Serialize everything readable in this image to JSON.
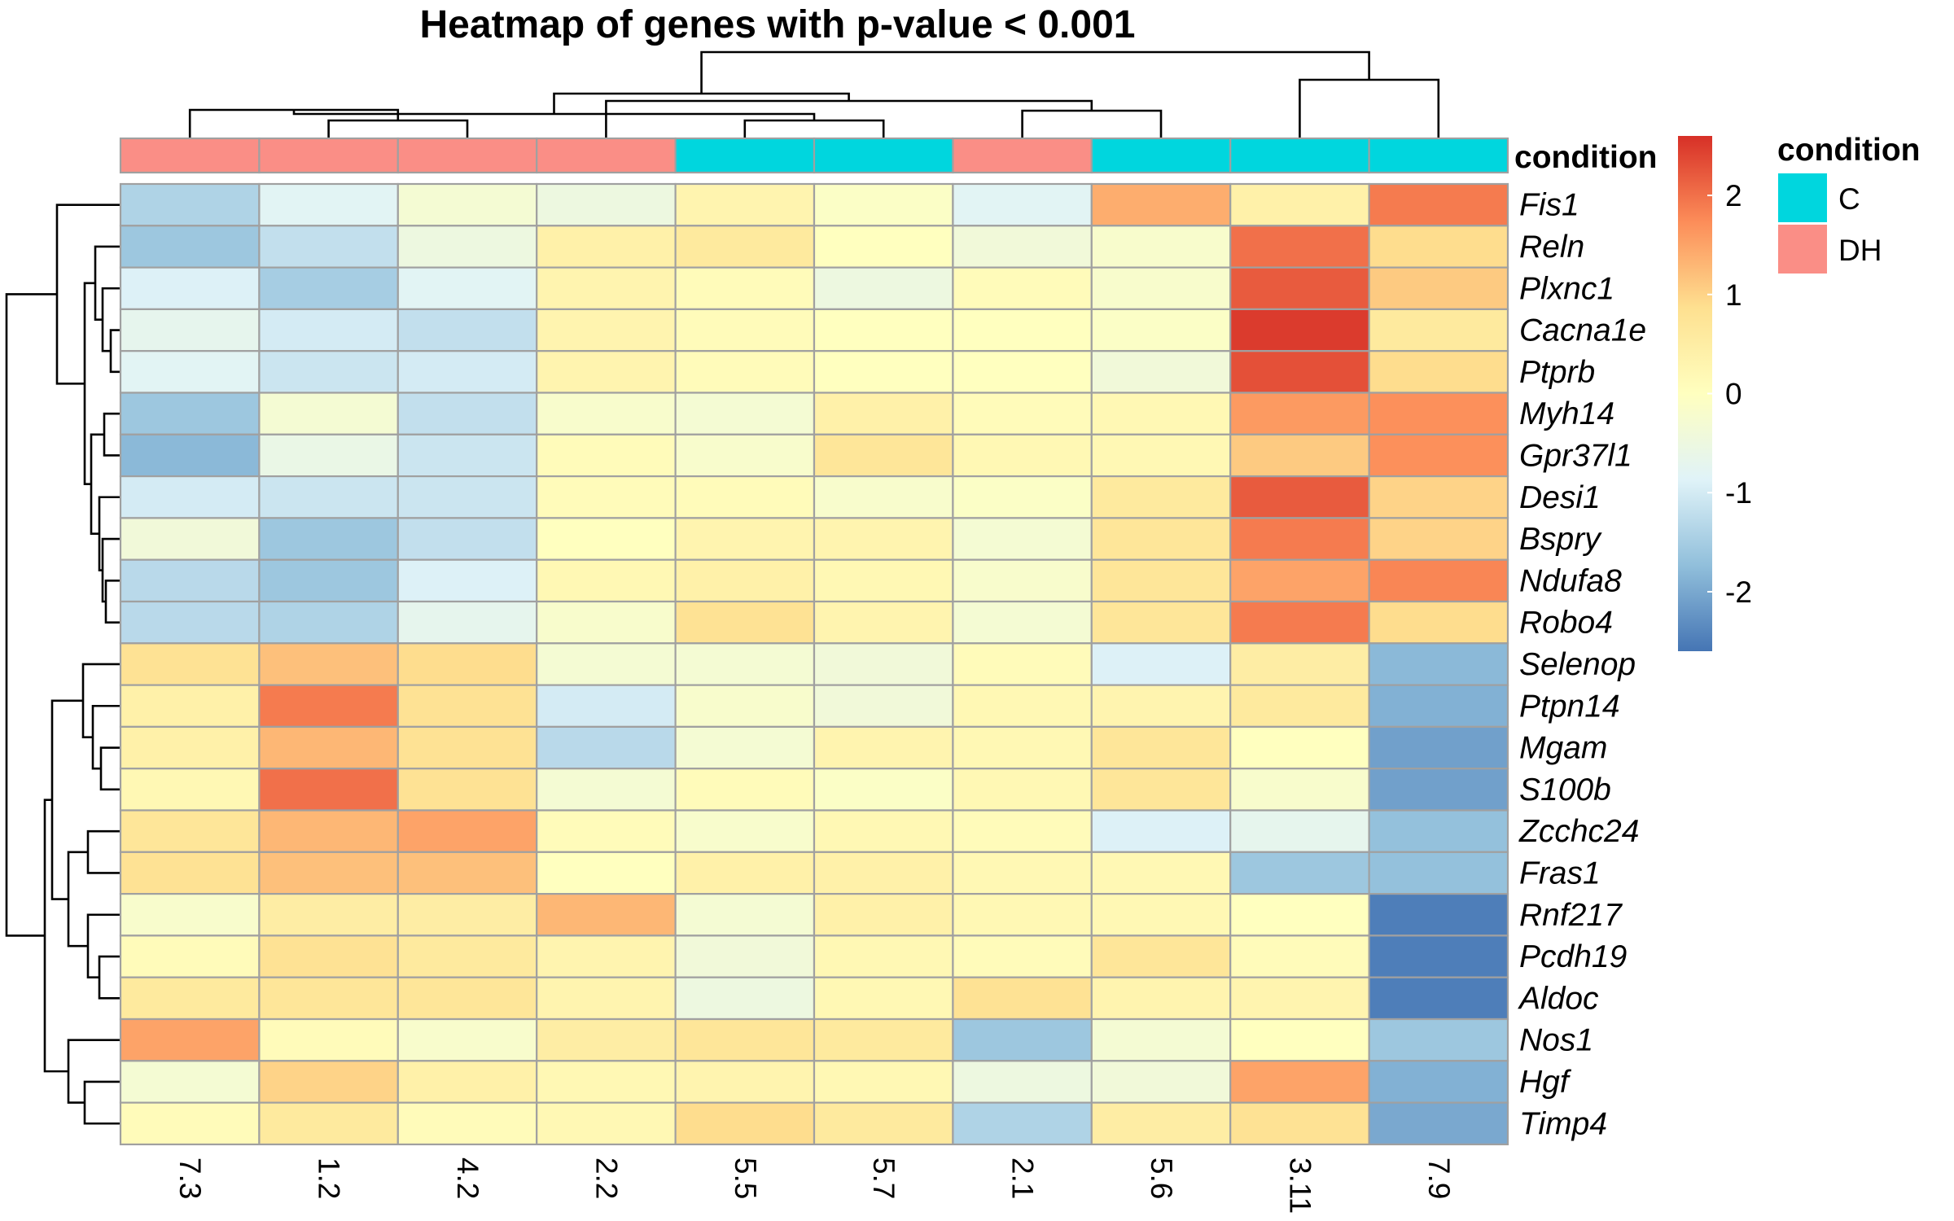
{
  "chart_data": {
    "type": "heatmap",
    "title": "Heatmap of genes with p-value < 0.001",
    "columns": [
      "7.3",
      "1.2",
      "4.2",
      "2.2",
      "5.5",
      "5.7",
      "2.1",
      "5.6",
      "3.11",
      "7.9"
    ],
    "column_condition": [
      "DH",
      "DH",
      "DH",
      "DH",
      "C",
      "C",
      "DH",
      "C",
      "C",
      "C"
    ],
    "rows": [
      "Fis1",
      "Reln",
      "Plxnc1",
      "Cacna1e",
      "Ptprb",
      "Myh14",
      "Gpr37l1",
      "Desi1",
      "Bspry",
      "Ndufa8",
      "Robo4",
      "Selenop",
      "Ptpn14",
      "Mgam",
      "S100b",
      "Zcchc24",
      "Fras1",
      "Rnf217",
      "Pcdh19",
      "Aldoc",
      "Nos1",
      "Hgf",
      "Timp4"
    ],
    "values": [
      [
        -1.4,
        -0.8,
        -0.3,
        -0.5,
        0.3,
        -0.1,
        -0.8,
        1.4,
        0.4,
        1.9
      ],
      [
        -1.6,
        -1.2,
        -0.5,
        0.4,
        0.6,
        0.0,
        -0.4,
        -0.2,
        2.0,
        0.9
      ],
      [
        -0.9,
        -1.5,
        -0.8,
        0.3,
        0.1,
        -0.5,
        0.1,
        -0.2,
        2.2,
        1.1
      ],
      [
        -0.7,
        -1.0,
        -1.2,
        0.3,
        0.1,
        0.0,
        0.0,
        -0.1,
        2.5,
        0.6
      ],
      [
        -0.8,
        -1.1,
        -1.0,
        0.3,
        0.1,
        0.0,
        0.0,
        -0.4,
        2.3,
        0.9
      ],
      [
        -1.6,
        -0.3,
        -1.2,
        -0.2,
        -0.3,
        0.4,
        0.1,
        0.2,
        1.6,
        1.7
      ],
      [
        -1.8,
        -0.6,
        -1.1,
        0.1,
        -0.2,
        0.7,
        0.2,
        0.2,
        1.1,
        1.7
      ],
      [
        -1.0,
        -1.1,
        -1.1,
        0.1,
        0.1,
        -0.2,
        -0.1,
        0.6,
        2.2,
        1.0
      ],
      [
        -0.4,
        -1.6,
        -1.2,
        0.0,
        0.3,
        0.3,
        -0.3,
        0.7,
        1.9,
        1.0
      ],
      [
        -1.3,
        -1.6,
        -0.9,
        0.2,
        0.4,
        0.2,
        -0.2,
        0.7,
        1.5,
        1.8
      ],
      [
        -1.3,
        -1.4,
        -0.7,
        -0.2,
        0.8,
        0.3,
        -0.3,
        0.7,
        1.9,
        0.9
      ],
      [
        0.8,
        1.2,
        0.9,
        -0.3,
        -0.3,
        -0.4,
        0.1,
        -0.9,
        0.5,
        -1.8
      ],
      [
        0.4,
        1.9,
        0.8,
        -1.0,
        -0.2,
        -0.4,
        0.2,
        0.3,
        0.6,
        -1.9
      ],
      [
        0.4,
        1.3,
        0.8,
        -1.3,
        -0.3,
        0.3,
        0.2,
        0.7,
        0.0,
        -2.1
      ],
      [
        0.2,
        2.0,
        0.8,
        -0.3,
        0.1,
        -0.1,
        0.2,
        0.7,
        -0.2,
        -2.1
      ],
      [
        0.7,
        1.3,
        1.5,
        0.1,
        -0.2,
        0.2,
        0.1,
        -0.9,
        -0.7,
        -1.7
      ],
      [
        0.8,
        1.2,
        1.2,
        0.0,
        0.4,
        0.4,
        0.2,
        0.2,
        -1.6,
        -1.7
      ],
      [
        -0.2,
        0.5,
        0.5,
        1.3,
        -0.3,
        0.4,
        0.2,
        0.2,
        0.0,
        -2.5
      ],
      [
        0.1,
        0.8,
        0.6,
        0.3,
        -0.4,
        0.2,
        0.1,
        0.7,
        0.1,
        -2.5
      ],
      [
        0.6,
        0.7,
        0.7,
        0.3,
        -0.5,
        0.2,
        0.8,
        0.3,
        0.3,
        -2.5
      ],
      [
        1.5,
        0.1,
        -0.2,
        0.5,
        0.7,
        0.6,
        -1.6,
        -0.3,
        0.0,
        -1.6
      ],
      [
        -0.3,
        1.0,
        0.4,
        0.2,
        0.3,
        0.2,
        -0.5,
        -0.4,
        1.5,
        -1.9
      ],
      [
        0.1,
        0.6,
        0.1,
        0.2,
        0.9,
        0.6,
        -1.4,
        0.5,
        0.8,
        -2.0
      ]
    ],
    "color_scale": {
      "range": [
        -2.6,
        2.6
      ],
      "ticks": [
        -2,
        -1,
        0,
        1,
        2
      ],
      "tick_labels": [
        "-2",
        "-1",
        "0",
        "1",
        "2"
      ],
      "colors": [
        "#4575b4",
        "#91bfdb",
        "#e0f3f8",
        "#ffffbf",
        "#fee090",
        "#fc8d59",
        "#d73027"
      ]
    },
    "annotation": {
      "name": "condition",
      "legend_title": "condition",
      "levels": [
        {
          "label": "C",
          "color": "#00d6de"
        },
        {
          "label": "DH",
          "color": "#fa8e86"
        }
      ]
    },
    "cell_border_color": "#a0a0a0",
    "row_dendrogram": true,
    "column_dendrogram": true
  }
}
